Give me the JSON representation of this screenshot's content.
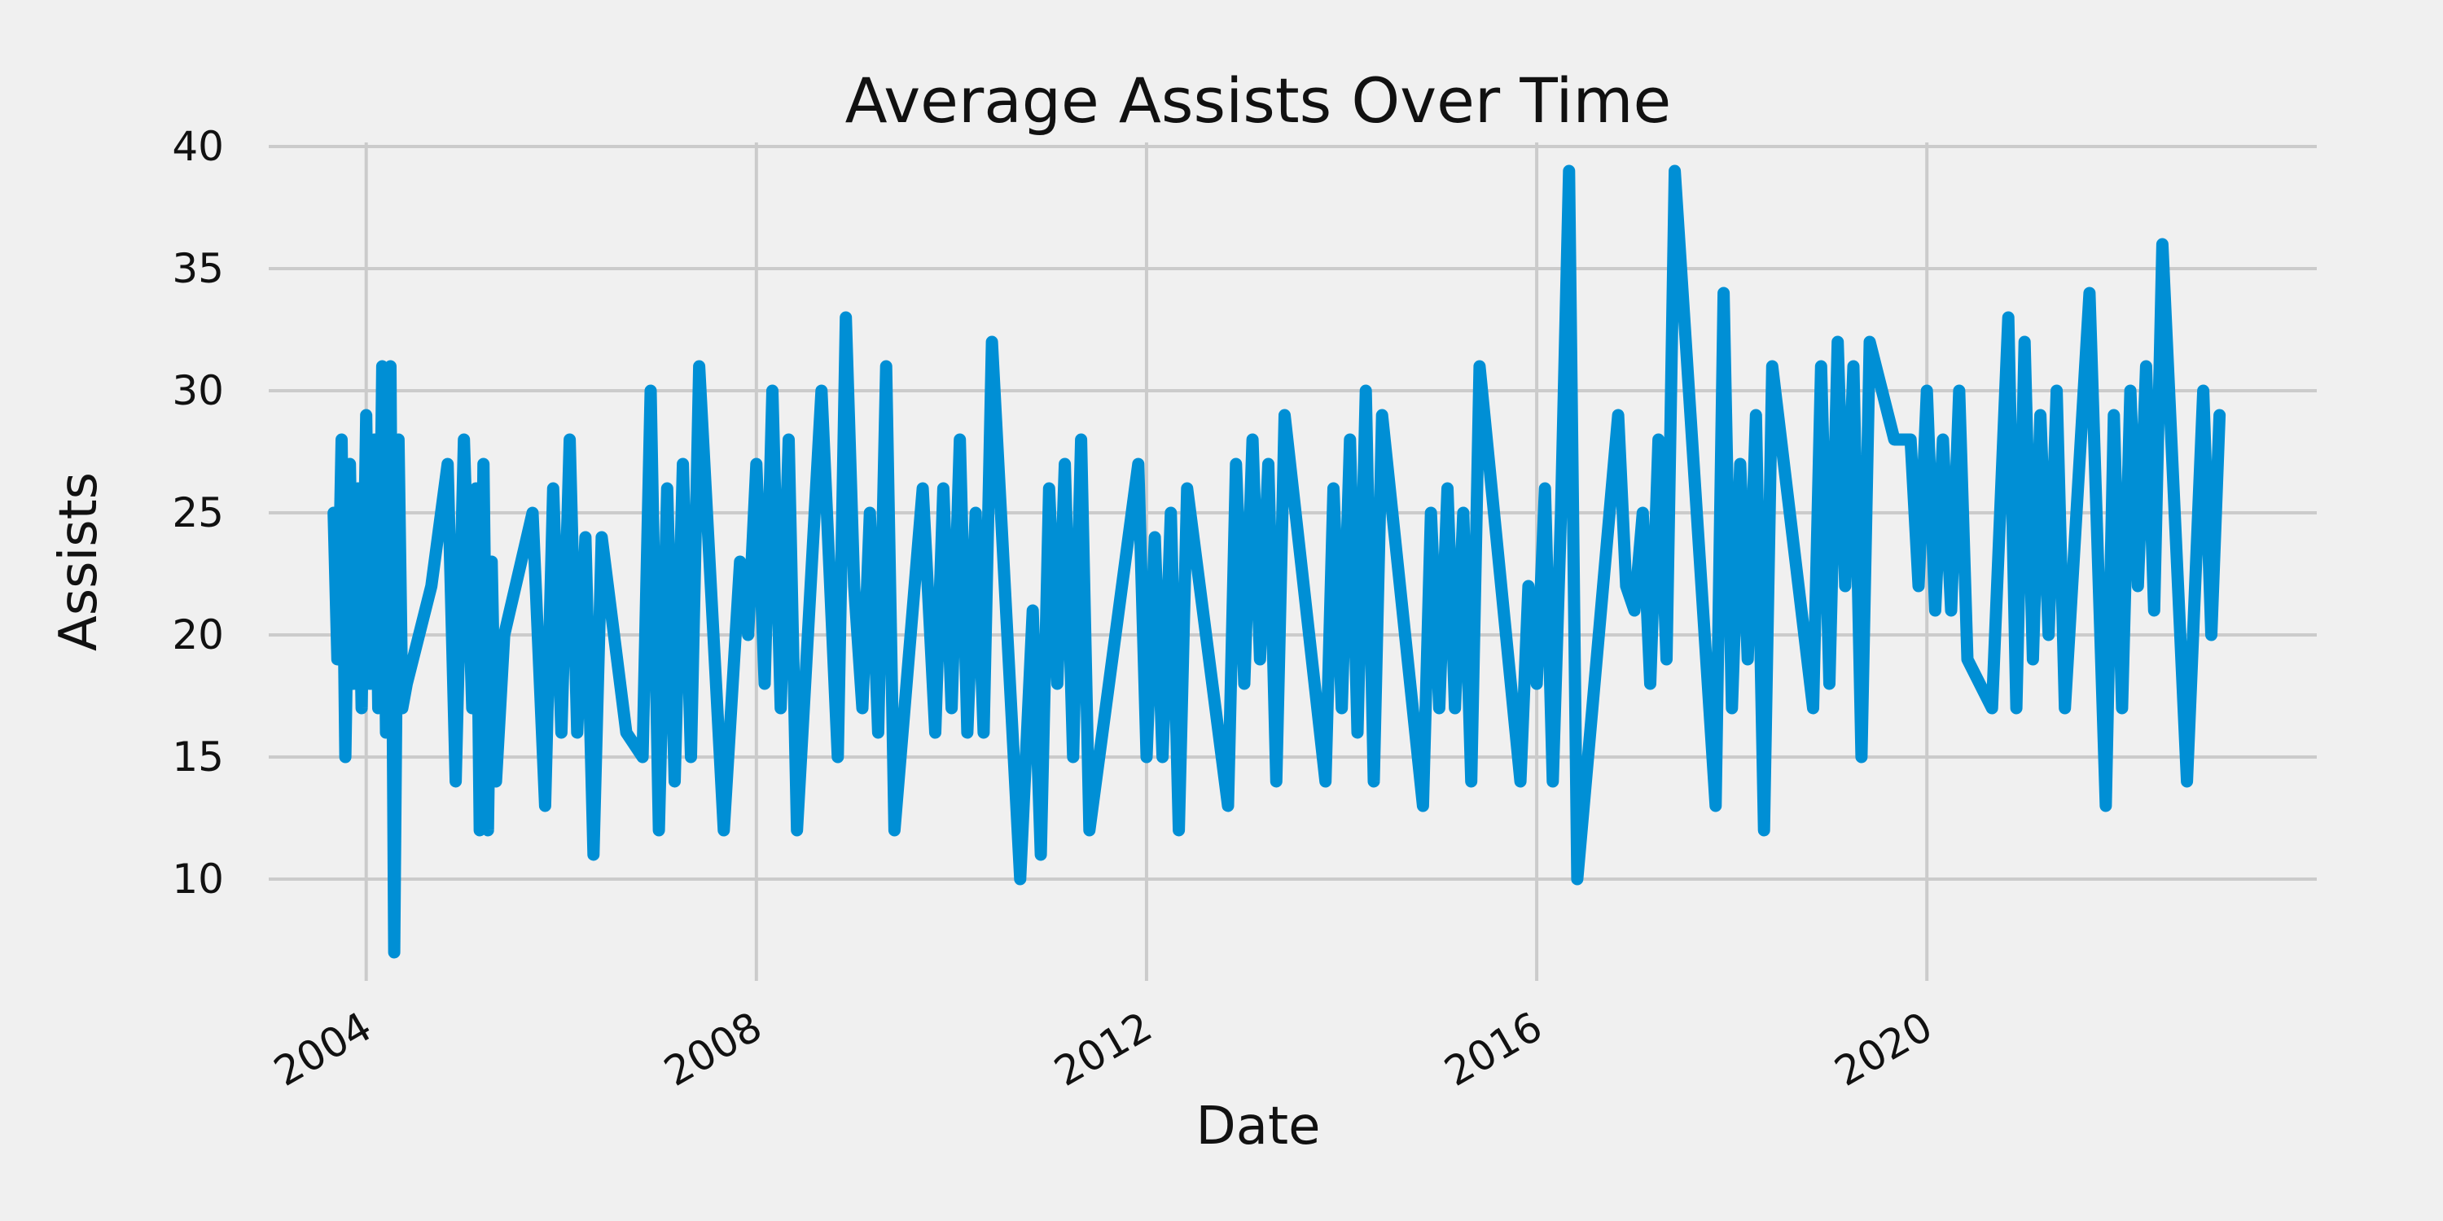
{
  "chart_data": {
    "type": "line",
    "title": "Average Assists Over Time",
    "xlabel": "Date",
    "ylabel": "Assists",
    "grid": true,
    "legend": "none",
    "colors": {
      "series": "#008fd5",
      "background": "#f0f0f0",
      "grid": "#cbcbcb"
    },
    "xlim": [
      "2003-01-01",
      "2023-12-31"
    ],
    "ylim": [
      6,
      40
    ],
    "yticks": [
      10,
      15,
      20,
      25,
      30,
      35,
      40
    ],
    "xticks": [
      "2004",
      "2008",
      "2012",
      "2016",
      "2020"
    ],
    "series": [
      {
        "x": [
          "2003-09-01",
          "2003-09-15",
          "2003-10-01",
          "2003-10-15",
          "2003-11-01",
          "2003-11-15",
          "2003-12-01",
          "2003-12-15",
          "2004-01-01",
          "2004-01-15",
          "2004-02-01",
          "2004-02-15",
          "2004-03-01",
          "2004-03-15",
          "2004-04-01",
          "2004-04-15",
          "2004-05-01",
          "2004-05-15",
          "2004-06-01",
          "2004-09-01",
          "2004-11-01",
          "2004-12-01",
          "2005-01-01",
          "2005-02-01",
          "2005-02-15",
          "2005-03-01",
          "2005-03-15",
          "2005-04-01",
          "2005-04-15",
          "2005-05-01",
          "2005-06-01",
          "2005-09-15",
          "2005-11-01",
          "2005-12-01",
          "2006-01-01",
          "2006-02-01",
          "2006-03-01",
          "2006-04-01",
          "2006-05-01",
          "2006-06-01",
          "2006-09-01",
          "2006-11-01",
          "2006-12-01",
          "2007-01-01",
          "2007-02-01",
          "2007-03-01",
          "2007-04-01",
          "2007-05-01",
          "2007-06-01",
          "2007-09-01",
          "2007-11-01",
          "2007-12-01",
          "2008-01-01",
          "2008-02-01",
          "2008-03-01",
          "2008-04-01",
          "2008-05-01",
          "2008-06-01",
          "2008-09-01",
          "2008-11-01",
          "2008-12-01",
          "2009-01-01",
          "2009-02-01",
          "2009-03-01",
          "2009-04-01",
          "2009-05-01",
          "2009-06-01",
          "2009-09-15",
          "2009-11-01",
          "2009-12-01",
          "2010-01-01",
          "2010-02-01",
          "2010-03-01",
          "2010-04-01",
          "2010-05-01",
          "2010-06-01",
          "2010-09-15",
          "2010-11-01",
          "2010-12-01",
          "2011-01-01",
          "2011-02-01",
          "2011-03-01",
          "2011-04-01",
          "2011-05-01",
          "2011-06-01",
          "2011-12-01",
          "2012-01-01",
          "2012-02-01",
          "2012-03-01",
          "2012-04-01",
          "2012-05-01",
          "2012-06-01",
          "2012-11-01",
          "2012-12-01",
          "2013-01-01",
          "2013-02-01",
          "2013-03-01",
          "2013-04-01",
          "2013-05-01",
          "2013-06-01",
          "2013-11-01",
          "2013-12-01",
          "2014-01-01",
          "2014-02-01",
          "2014-03-01",
          "2014-04-01",
          "2014-05-01",
          "2014-06-01",
          "2014-11-01",
          "2014-12-01",
          "2015-01-01",
          "2015-02-01",
          "2015-03-01",
          "2015-04-01",
          "2015-05-01",
          "2015-06-01",
          "2015-11-01",
          "2015-12-01",
          "2016-01-01",
          "2016-02-01",
          "2016-03-01",
          "2016-04-01",
          "2016-05-01",
          "2016-06-01",
          "2016-11-01",
          "2016-12-01",
          "2017-01-01",
          "2017-02-01",
          "2017-03-01",
          "2017-04-01",
          "2017-05-01",
          "2017-06-01",
          "2017-11-01",
          "2017-12-01",
          "2018-01-01",
          "2018-02-01",
          "2018-03-01",
          "2018-04-01",
          "2018-05-01",
          "2018-06-01",
          "2018-11-01",
          "2018-12-01",
          "2019-01-01",
          "2019-02-01",
          "2019-03-01",
          "2019-04-01",
          "2019-05-01",
          "2019-06-01",
          "2019-09-01",
          "2019-11-01",
          "2019-12-01",
          "2020-01-01",
          "2020-02-01",
          "2020-03-01",
          "2020-04-01",
          "2020-05-01",
          "2020-06-01",
          "2020-09-01",
          "2020-11-01",
          "2020-12-01",
          "2021-01-01",
          "2021-02-01",
          "2021-03-01",
          "2021-04-01",
          "2021-05-01",
          "2021-06-01",
          "2021-09-01",
          "2021-11-01",
          "2021-12-01",
          "2022-01-01",
          "2022-02-01",
          "2022-03-01",
          "2022-04-01",
          "2022-05-01",
          "2022-06-01",
          "2022-09-01",
          "2022-11-01",
          "2022-12-01",
          "2023-01-01"
        ],
        "values": [
          25,
          19,
          28,
          15,
          27,
          18,
          26,
          17,
          29,
          18,
          28,
          17,
          31,
          16,
          31,
          7,
          28,
          17,
          18,
          22,
          27,
          14,
          28,
          17,
          26,
          12,
          27,
          12,
          23,
          14,
          20,
          25,
          13,
          26,
          16,
          28,
          16,
          24,
          11,
          24,
          16,
          15,
          30,
          12,
          26,
          14,
          27,
          15,
          31,
          12,
          23,
          20,
          27,
          18,
          30,
          17,
          28,
          12,
          30,
          15,
          33,
          22,
          17,
          25,
          16,
          31,
          12,
          26,
          16,
          26,
          17,
          28,
          16,
          25,
          16,
          32,
          10,
          21,
          11,
          26,
          18,
          27,
          15,
          28,
          12,
          27,
          15,
          24,
          15,
          25,
          12,
          26,
          13,
          27,
          18,
          28,
          19,
          27,
          14,
          29,
          14,
          26,
          17,
          28,
          16,
          30,
          14,
          29,
          13,
          25,
          17,
          26,
          17,
          25,
          14,
          31,
          14,
          22,
          18,
          26,
          14,
          25,
          39,
          10,
          29,
          22,
          21,
          25,
          18,
          28,
          19,
          39,
          13,
          34,
          17,
          27,
          19,
          29,
          12,
          31,
          17,
          31,
          18,
          32,
          22,
          31,
          15,
          32,
          28,
          28,
          22,
          30,
          21,
          28,
          21,
          30,
          19,
          17,
          33,
          17,
          32,
          19,
          29,
          20,
          30,
          17,
          34,
          13,
          29,
          17,
          30,
          22,
          31,
          21,
          36,
          14,
          30,
          20,
          29
        ]
      }
    ]
  }
}
